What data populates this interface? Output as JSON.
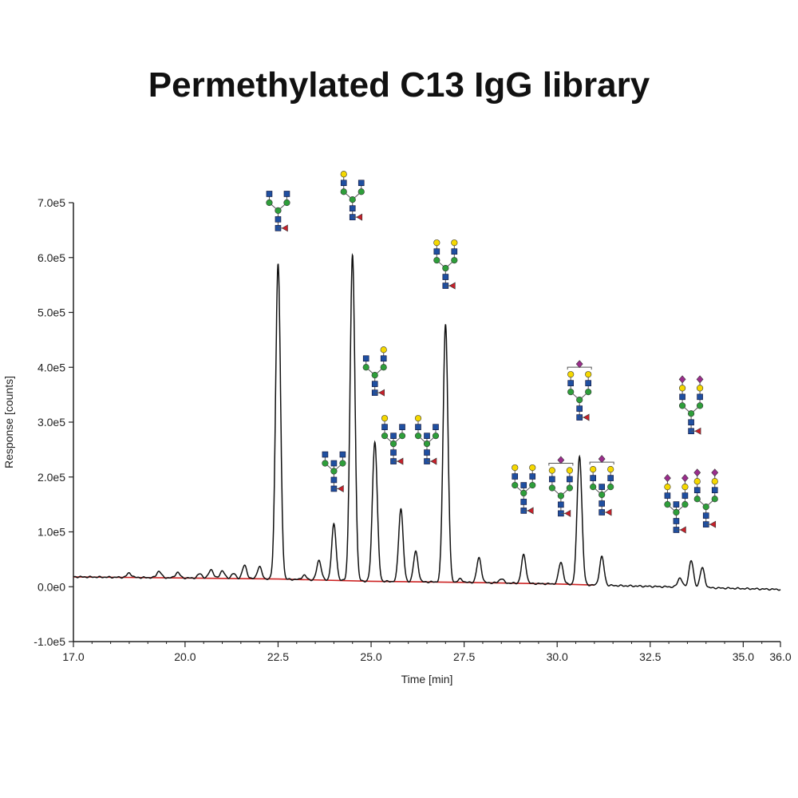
{
  "chart_data": {
    "type": "line",
    "title": "Permethylated C13 IgG library",
    "xlabel": "Time [min]",
    "ylabel": "Response [counts]",
    "xlim": [
      17.0,
      36.0
    ],
    "ylim": [
      -100000,
      700000
    ],
    "x_ticks": [
      17.0,
      20.0,
      22.5,
      25.0,
      27.5,
      30.0,
      32.5,
      35.0,
      36.0
    ],
    "x_tick_labels": [
      "17.0",
      "20.0",
      "22.5",
      "25.0",
      "27.5",
      "30.0",
      "32.5",
      "35.0",
      "36.0"
    ],
    "y_ticks": [
      -100000,
      0,
      100000,
      200000,
      300000,
      400000,
      500000,
      600000,
      700000
    ],
    "y_tick_labels": [
      "-1.0e5",
      "0.0e0",
      "1.0e5",
      "2.0e5",
      "3.0e5",
      "4.0e5",
      "5.0e5",
      "6.0e5",
      "7.0e5"
    ],
    "grid": false,
    "colors": {
      "trace": "#111111",
      "baseline": "#cc2222",
      "gal": "#f5d800",
      "glcnac": "#1f4fa0",
      "man": "#2e9e3a",
      "fuc": "#c8202a",
      "neuac": "#9b2d8c"
    },
    "baseline": {
      "x": [
        17.0,
        20.0,
        22.5,
        25.0,
        27.5,
        30.0,
        31.0
      ],
      "y": [
        18000,
        16000,
        14000,
        10000,
        8000,
        5000,
        3000
      ]
    },
    "series": [
      {
        "peaks": [
          {
            "rt": 18.5,
            "height": 8000
          },
          {
            "rt": 19.3,
            "height": 12000
          },
          {
            "rt": 19.8,
            "height": 10000
          },
          {
            "rt": 20.4,
            "height": 8000
          },
          {
            "rt": 20.7,
            "height": 16000
          },
          {
            "rt": 21.0,
            "height": 14000
          },
          {
            "rt": 21.3,
            "height": 9000
          },
          {
            "rt": 21.6,
            "height": 24000
          },
          {
            "rt": 22.0,
            "height": 22000
          },
          {
            "rt": 22.5,
            "height": 575000
          },
          {
            "rt": 23.2,
            "height": 8000
          },
          {
            "rt": 23.6,
            "height": 36000
          },
          {
            "rt": 24.0,
            "height": 102000
          },
          {
            "rt": 24.5,
            "height": 593000
          },
          {
            "rt": 25.1,
            "height": 255000
          },
          {
            "rt": 25.8,
            "height": 133000
          },
          {
            "rt": 26.2,
            "height": 55000
          },
          {
            "rt": 27.0,
            "height": 470000
          },
          {
            "rt": 27.4,
            "height": 6000
          },
          {
            "rt": 27.9,
            "height": 45000
          },
          {
            "rt": 28.5,
            "height": 8000
          },
          {
            "rt": 29.1,
            "height": 52000
          },
          {
            "rt": 30.1,
            "height": 40000
          },
          {
            "rt": 30.6,
            "height": 235000
          },
          {
            "rt": 31.2,
            "height": 52000
          },
          {
            "rt": 33.3,
            "height": 17000
          },
          {
            "rt": 33.6,
            "height": 49000
          },
          {
            "rt": 33.9,
            "height": 36000
          }
        ]
      }
    ],
    "glycan_annotations": [
      {
        "rt": 22.5,
        "y": 610000,
        "structure": "G0F"
      },
      {
        "rt": 24.0,
        "y": 135000,
        "structure": "G0F+GlcNAc"
      },
      {
        "rt": 24.5,
        "y": 630000,
        "structure": "G1F"
      },
      {
        "rt": 25.1,
        "y": 310000,
        "structure": "G1F'"
      },
      {
        "rt": 25.6,
        "y": 185000,
        "structure": "G1F+GlcNAc"
      },
      {
        "rt": 26.5,
        "y": 185000,
        "structure": "G1F+GlcNAc"
      },
      {
        "rt": 27.0,
        "y": 505000,
        "structure": "G2F"
      },
      {
        "rt": 29.1,
        "y": 95000,
        "structure": "G2F+GlcNAc"
      },
      {
        "rt": 30.1,
        "y": 90000,
        "structure": "G1FS1"
      },
      {
        "rt": 30.6,
        "y": 265000,
        "structure": "G2FS1"
      },
      {
        "rt": 31.2,
        "y": 92000,
        "structure": "G2FS1+GlcNAc"
      },
      {
        "rt": 33.6,
        "y": 240000,
        "structure": "G2FS2"
      },
      {
        "rt": 33.2,
        "y": 60000,
        "structure": "G2FS2+GlcNAc"
      },
      {
        "rt": 34.0,
        "y": 70000,
        "structure": "G2FS2"
      }
    ]
  }
}
